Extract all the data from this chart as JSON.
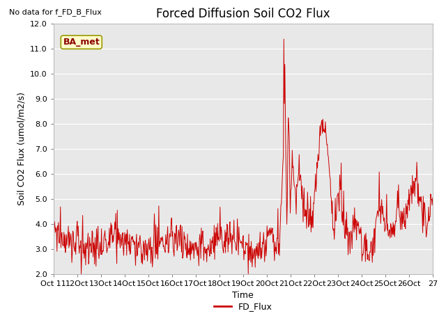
{
  "title": "Forced Diffusion Soil CO2 Flux",
  "xlabel": "Time",
  "ylabel": "Soil CO2 Flux (umol/m2/s)",
  "no_data_text": "No data for f_FD_B_Flux",
  "ba_met_label": "BA_met",
  "legend_label": "FD_Flux",
  "line_color": "#cc0000",
  "ylim": [
    2.0,
    12.0
  ],
  "yticks": [
    2.0,
    3.0,
    4.0,
    5.0,
    6.0,
    7.0,
    8.0,
    9.0,
    10.0,
    11.0,
    12.0
  ],
  "background_color": "#e8e8e8",
  "fig_background": "#ffffff",
  "title_fontsize": 12,
  "axis_label_fontsize": 9,
  "tick_fontsize": 8,
  "n_days": 16,
  "n_per_day": 48
}
